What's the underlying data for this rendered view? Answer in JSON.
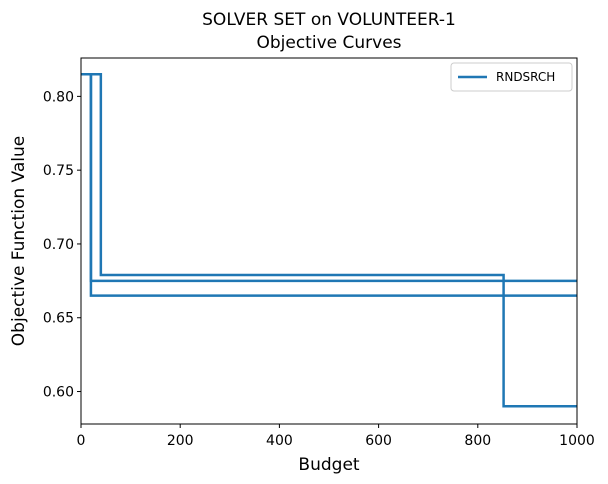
{
  "chart_data": {
    "type": "line",
    "step": "post",
    "title": "SOLVER SET on VOLUNTEER-1",
    "subtitle": "Objective Curves",
    "xlabel": "Budget",
    "ylabel": "Objective Function Value",
    "xlim": [
      0,
      1000
    ],
    "ylim": [
      0.578,
      0.826
    ],
    "xticks": [
      0,
      200,
      400,
      600,
      800,
      1000
    ],
    "xtick_labels": [
      "0",
      "200",
      "400",
      "600",
      "800",
      "1000"
    ],
    "yticks": [
      0.6,
      0.65,
      0.7,
      0.75,
      0.8
    ],
    "ytick_labels": [
      "0.60",
      "0.65",
      "0.70",
      "0.75",
      "0.80"
    ],
    "grid": false,
    "legend": {
      "position": "top-right",
      "entries": [
        "RNDSRCH"
      ]
    },
    "color": "#1f77b4",
    "series": [
      {
        "name": "RNDSRCH",
        "x": [
          0,
          20,
          1000
        ],
        "y": [
          0.815,
          0.665,
          0.665
        ]
      },
      {
        "x": [
          0,
          20,
          1000
        ],
        "y": [
          0.815,
          0.675,
          0.675
        ]
      },
      {
        "x": [
          0,
          40,
          852,
          1000
        ],
        "y": [
          0.815,
          0.679,
          0.59,
          0.59
        ]
      }
    ]
  }
}
